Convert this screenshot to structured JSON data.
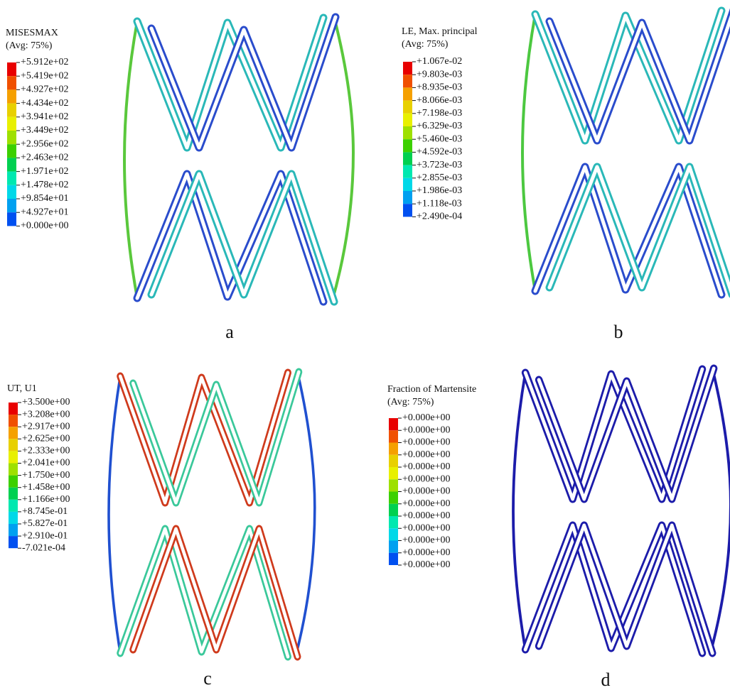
{
  "panels": [
    {
      "title": [
        "MISESMAX",
        "(Avg: 75%)"
      ],
      "labels": [
        "+5.912e+02",
        "+5.419e+02",
        "+4.927e+02",
        "+4.434e+02",
        "+3.941e+02",
        "+3.449e+02",
        "+2.956e+02",
        "+2.463e+02",
        "+1.971e+02",
        "+1.478e+02",
        "+9.854e+01",
        "+4.927e+01",
        "+0.000e+00"
      ],
      "caption": "a"
    },
    {
      "title": [
        "LE, Max. principal",
        "(Avg: 75%)"
      ],
      "labels": [
        "+1.067e-02",
        "+9.803e-03",
        "+8.935e-03",
        "+8.066e-03",
        "+7.198e-03",
        "+6.329e-03",
        "+5.460e-03",
        "+4.592e-03",
        "+3.723e-03",
        "+2.855e-03",
        "+1.986e-03",
        "+1.118e-03",
        "+2.490e-04"
      ],
      "caption": "b"
    },
    {
      "title": [
        "UT, U1"
      ],
      "labels": [
        "+3.500e+00",
        "+3.208e+00",
        "+2.917e+00",
        "+2.625e+00",
        "+2.333e+00",
        "+2.041e+00",
        "+1.750e+00",
        "+1.458e+00",
        "+1.166e+00",
        "+8.745e-01",
        "+5.827e-01",
        "+2.910e-01",
        "-7.021e-04"
      ],
      "caption": "c"
    },
    {
      "title": [
        "Fraction of Martensite",
        "(Avg: 75%)"
      ],
      "labels": [
        "+0.000e+00",
        "+0.000e+00",
        "+0.000e+00",
        "+0.000e+00",
        "+0.000e+00",
        "+0.000e+00",
        "+0.000e+00",
        "+0.000e+00",
        "+0.000e+00",
        "+0.000e+00",
        "+0.000e+00",
        "+0.000e+00",
        "+0.000e+00"
      ],
      "caption": "d"
    }
  ]
}
